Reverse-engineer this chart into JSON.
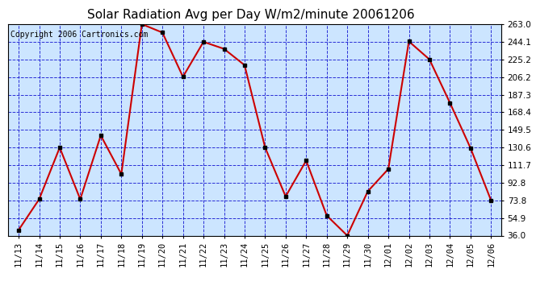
{
  "title": "Solar Radiation Avg per Day W/m2/minute 20061206",
  "copyright": "Copyright 2006 Cartronics.com",
  "x_labels": [
    "11/13",
    "11/14",
    "11/15",
    "11/16",
    "11/17",
    "11/18",
    "11/19",
    "11/20",
    "11/21",
    "11/22",
    "11/23",
    "11/24",
    "11/25",
    "11/26",
    "11/27",
    "11/28",
    "11/29",
    "11/30",
    "12/01",
    "12/02",
    "12/03",
    "12/04",
    "12/05",
    "12/06"
  ],
  "y_values": [
    42.0,
    75.0,
    130.5,
    75.0,
    143.5,
    102.0,
    263.0,
    254.0,
    206.5,
    244.0,
    236.5,
    219.0,
    130.6,
    78.0,
    116.5,
    57.5,
    36.0,
    83.5,
    107.5,
    244.5,
    225.2,
    178.5,
    130.0,
    73.8
  ],
  "y_min": 36.0,
  "y_max": 263.0,
  "y_ticks": [
    36.0,
    54.9,
    73.8,
    92.8,
    111.7,
    130.6,
    149.5,
    168.4,
    187.3,
    206.2,
    225.2,
    244.1,
    263.0
  ],
  "line_color": "#cc0000",
  "marker_color": "#000000",
  "bg_color": "#ffffff",
  "plot_bg_color": "#cce5ff",
  "grid_color": "#0000cc",
  "title_color": "#000000",
  "copyright_color": "#000000",
  "title_fontsize": 11,
  "copyright_fontsize": 7,
  "tick_label_fontsize": 7.5
}
